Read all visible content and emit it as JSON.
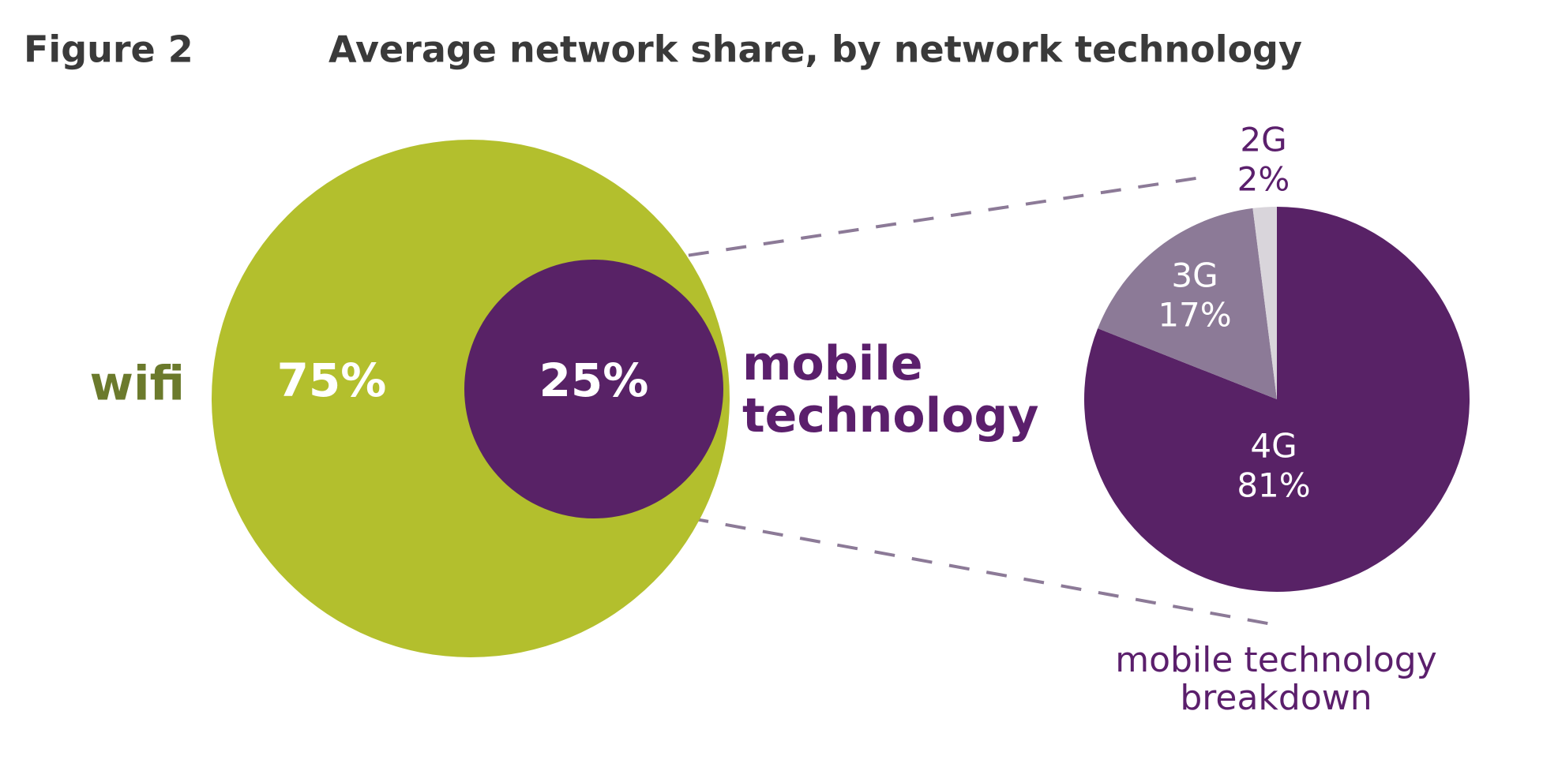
{
  "figure_label": "Figure 2",
  "title": "Average network share, by network technology",
  "chart_data": [
    {
      "type": "circles",
      "categories": [
        "wifi",
        "mobile technology"
      ],
      "values": [
        75,
        25
      ],
      "value_labels": [
        "75%",
        "25%"
      ],
      "colors": [
        "#b3bf2d",
        "#582266"
      ],
      "label_colors": [
        "#6b7a2c",
        "#5b1f6c"
      ]
    },
    {
      "type": "pie",
      "title": "mobile technology breakdown",
      "categories": [
        "4G",
        "3G",
        "2G"
      ],
      "values": [
        81,
        17,
        2
      ],
      "value_labels": [
        "81%",
        "17%",
        "2%"
      ],
      "colors": [
        "#582266",
        "#8c7a97",
        "#d9d5db"
      ]
    }
  ]
}
